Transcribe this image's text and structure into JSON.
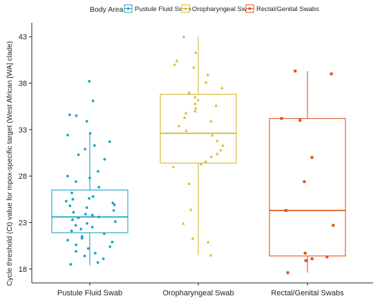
{
  "chart_data": {
    "type": "boxplot",
    "title": "",
    "xlabel": "",
    "ylabel": "Cycle threshold (Ct) value for mpox-specific target (West African [WA] clade)",
    "ylim": [
      16.5,
      44.5
    ],
    "yticks": [
      18,
      23,
      28,
      33,
      38,
      43
    ],
    "grid": false,
    "legend": {
      "title": "Body Area",
      "placement": "top"
    },
    "categories": [
      "Pustule Fluid Swab",
      "Oropharyngeal Swab",
      "Rectal/Genital Swabs"
    ],
    "series": [
      {
        "name": "Pustule Fluid Swab",
        "color": "#1BA3C6",
        "marker": "circle",
        "box": {
          "q1": 21.9,
          "median": 23.6,
          "q3": 26.5,
          "whisker_low": 18.4,
          "whisker_high": 32.6
        },
        "points": [
          38.2,
          36.1,
          34.6,
          34.5,
          33.9,
          32.6,
          32.4,
          31.7,
          31.3,
          30.9,
          30.3,
          29.8,
          28.5,
          28.0,
          27.8,
          27.4,
          26.8,
          26.2,
          25.8,
          25.6,
          25.5,
          25.3,
          25.1,
          24.9,
          24.8,
          24.6,
          24.3,
          24.1,
          23.9,
          23.8,
          23.6,
          23.5,
          23.3,
          23.1,
          22.9,
          22.7,
          22.5,
          22.3,
          22.1,
          21.8,
          21.5,
          21.3,
          21.1,
          20.9,
          20.6,
          20.4,
          20.2,
          19.9,
          19.7,
          19.4,
          19.1,
          18.7,
          18.5
        ]
      },
      {
        "name": "Oropharyngeal Swab",
        "color": "#D4B82A",
        "marker": "triangle",
        "box": {
          "q1": 29.4,
          "median": 32.6,
          "q3": 36.8,
          "whisker_low": 19.5,
          "whisker_high": 43.0
        },
        "points": [
          43.0,
          41.3,
          40.4,
          40.0,
          39.7,
          38.9,
          38.1,
          37.5,
          37.0,
          36.5,
          36.2,
          35.8,
          35.6,
          35.3,
          35.0,
          34.8,
          34.3,
          33.9,
          33.4,
          32.9,
          32.4,
          31.8,
          31.3,
          30.8,
          30.4,
          30.1,
          29.6,
          29.3,
          29.0,
          27.2,
          24.4,
          22.9,
          21.3,
          20.9,
          19.5
        ]
      },
      {
        "name": "Rectal/Genital Swabs",
        "color": "#D9541E",
        "marker": "square",
        "box": {
          "q1": 19.4,
          "median": 24.3,
          "q3": 34.2,
          "whisker_low": 17.6,
          "whisker_high": 39.3
        },
        "points": [
          39.3,
          39.0,
          34.2,
          34.0,
          30.0,
          27.4,
          24.3,
          22.7,
          19.7,
          19.3,
          19.1,
          18.9,
          17.6
        ]
      }
    ]
  }
}
